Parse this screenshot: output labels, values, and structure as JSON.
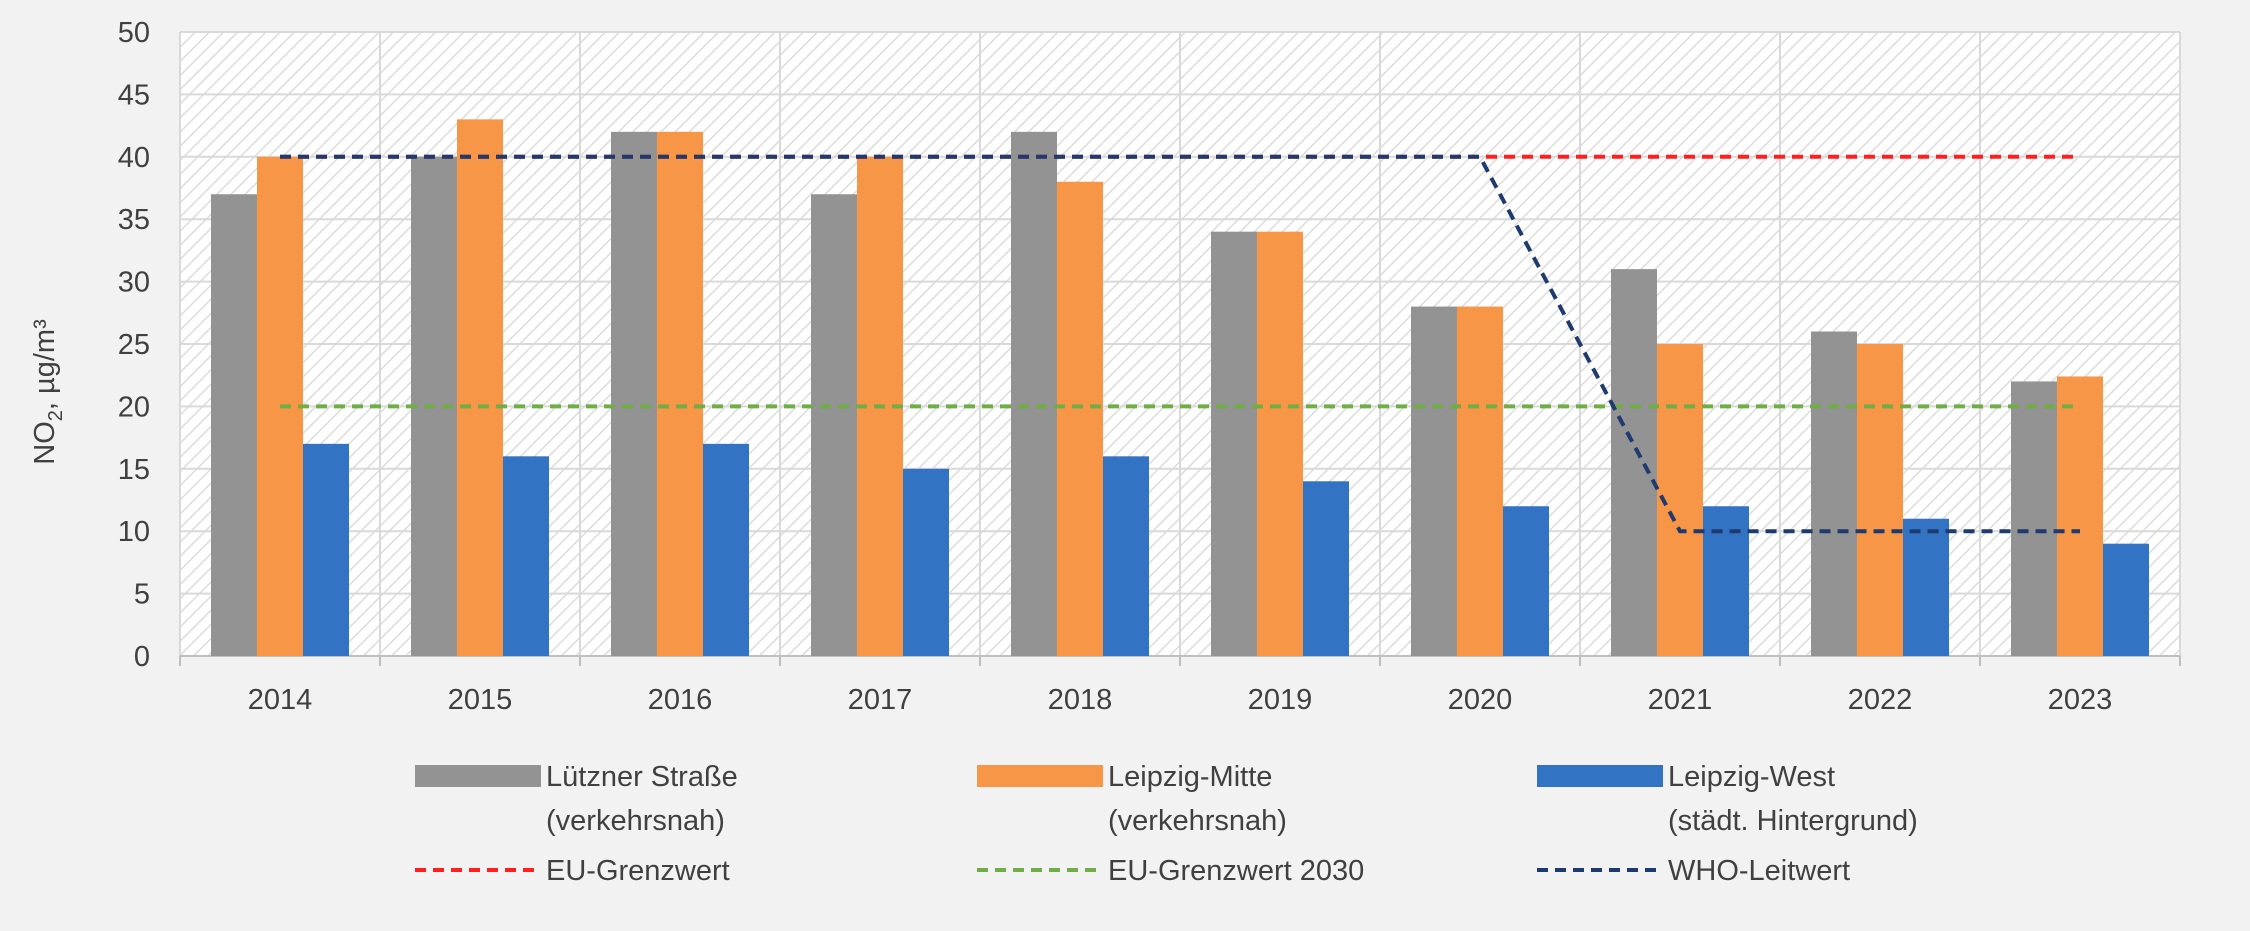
{
  "chart_data": {
    "type": "bar",
    "categories": [
      "2014",
      "2015",
      "2016",
      "2017",
      "2018",
      "2019",
      "2020",
      "2021",
      "2022",
      "2023"
    ],
    "ylabel": "NO2, µg/m³",
    "ylabel_main": "NO",
    "ylabel_sub": "2",
    "ylabel_rest": ", µg/m³",
    "ylim": [
      0,
      50
    ],
    "yticks": [
      0,
      5,
      10,
      15,
      20,
      25,
      30,
      35,
      40,
      45,
      50
    ],
    "grid": true,
    "legend_position": "bottom",
    "series": [
      {
        "name": "Lützner Straße (verkehrsnah)",
        "label_lines": [
          "Lützner Straße",
          "(verkehrsnah)"
        ],
        "color": "#939393",
        "values": [
          37,
          40,
          42,
          37,
          42,
          34,
          28,
          31,
          26,
          22
        ]
      },
      {
        "name": "Leipzig-Mitte (verkehrsnah)",
        "label_lines": [
          "Leipzig-Mitte",
          "(verkehrsnah)"
        ],
        "color": "#f79646",
        "values": [
          40,
          43,
          42,
          40,
          38,
          34,
          28,
          25,
          25,
          22.4
        ]
      },
      {
        "name": "Leipzig-West (städt. Hintergrund)",
        "label_lines": [
          "Leipzig-West",
          "(städt. Hintergrund)"
        ],
        "color": "#3373c4",
        "values": [
          17,
          16,
          17,
          15,
          16,
          14,
          12,
          12,
          11,
          9
        ]
      }
    ],
    "lines": [
      {
        "name": "EU-Grenzwert",
        "color": "#ff1f1f",
        "values": [
          40,
          40,
          40,
          40,
          40,
          40,
          40,
          40,
          40,
          40
        ]
      },
      {
        "name": "EU-Grenzwert 2030",
        "color": "#70ad47",
        "values": [
          20,
          20,
          20,
          20,
          20,
          20,
          20,
          20,
          20,
          20
        ]
      },
      {
        "name": "WHO-Leitwert",
        "color": "#1f3a6e",
        "values": [
          40,
          40,
          40,
          40,
          40,
          40,
          40,
          10,
          10,
          10
        ]
      }
    ]
  }
}
